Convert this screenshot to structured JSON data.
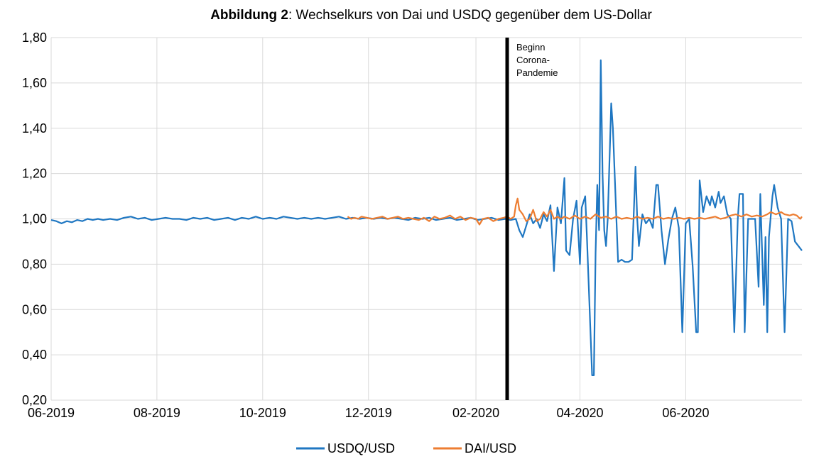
{
  "chart_data": {
    "type": "line",
    "title_bold": "Abbildung 2",
    "title_rest": ": Wechselkurs von Dai und USDQ gegenüber dem US-Dollar",
    "xlabel": "",
    "ylabel": "",
    "x_range": [
      "2019-06-01",
      "2020-08-07"
    ],
    "ylim": [
      0.2,
      1.8
    ],
    "y_ticks": [
      {
        "value": 0.2,
        "label": "0,20"
      },
      {
        "value": 0.4,
        "label": "0,40"
      },
      {
        "value": 0.6,
        "label": "0,60"
      },
      {
        "value": 0.8,
        "label": "0,80"
      },
      {
        "value": 1.0,
        "label": "1,00"
      },
      {
        "value": 1.2,
        "label": "1,20"
      },
      {
        "value": 1.4,
        "label": "1,40"
      },
      {
        "value": 1.6,
        "label": "1,60"
      },
      {
        "value": 1.8,
        "label": "1,80"
      }
    ],
    "x_ticks": [
      {
        "date": "2019-06-01",
        "label": "06-2019"
      },
      {
        "date": "2019-08-01",
        "label": "08-2019"
      },
      {
        "date": "2019-10-01",
        "label": "10-2019"
      },
      {
        "date": "2019-12-01",
        "label": "12-2019"
      },
      {
        "date": "2020-02-01",
        "label": "02-2020"
      },
      {
        "date": "2020-04-01",
        "label": "04-2020"
      },
      {
        "date": "2020-06-01",
        "label": "06-2020"
      }
    ],
    "grid": true,
    "legend_position": "bottom",
    "annotation": {
      "date": "2020-02-19",
      "lines": [
        "Beginn",
        "Corona-",
        "Pandemie"
      ]
    },
    "series": [
      {
        "name": "USDQ/USD",
        "color": "#1f77c2",
        "points": [
          [
            "2019-06-01",
            0.995
          ],
          [
            "2019-06-04",
            0.99
          ],
          [
            "2019-06-07",
            0.98
          ],
          [
            "2019-06-10",
            0.99
          ],
          [
            "2019-06-13",
            0.985
          ],
          [
            "2019-06-16",
            0.995
          ],
          [
            "2019-06-19",
            0.99
          ],
          [
            "2019-06-22",
            1.0
          ],
          [
            "2019-06-25",
            0.995
          ],
          [
            "2019-06-28",
            1.0
          ],
          [
            "2019-07-01",
            0.995
          ],
          [
            "2019-07-05",
            1.0
          ],
          [
            "2019-07-09",
            0.995
          ],
          [
            "2019-07-13",
            1.005
          ],
          [
            "2019-07-17",
            1.01
          ],
          [
            "2019-07-21",
            1.0
          ],
          [
            "2019-07-25",
            1.005
          ],
          [
            "2019-07-29",
            0.995
          ],
          [
            "2019-08-02",
            1.0
          ],
          [
            "2019-08-06",
            1.005
          ],
          [
            "2019-08-10",
            1.0
          ],
          [
            "2019-08-14",
            1.0
          ],
          [
            "2019-08-18",
            0.995
          ],
          [
            "2019-08-22",
            1.005
          ],
          [
            "2019-08-26",
            1.0
          ],
          [
            "2019-08-30",
            1.005
          ],
          [
            "2019-09-03",
            0.995
          ],
          [
            "2019-09-07",
            1.0
          ],
          [
            "2019-09-11",
            1.005
          ],
          [
            "2019-09-15",
            0.995
          ],
          [
            "2019-09-19",
            1.005
          ],
          [
            "2019-09-23",
            1.0
          ],
          [
            "2019-09-27",
            1.01
          ],
          [
            "2019-10-01",
            1.0
          ],
          [
            "2019-10-05",
            1.005
          ],
          [
            "2019-10-09",
            1.0
          ],
          [
            "2019-10-13",
            1.01
          ],
          [
            "2019-10-17",
            1.005
          ],
          [
            "2019-10-21",
            1.0
          ],
          [
            "2019-10-25",
            1.005
          ],
          [
            "2019-10-29",
            1.0
          ],
          [
            "2019-11-02",
            1.005
          ],
          [
            "2019-11-06",
            1.0
          ],
          [
            "2019-11-10",
            1.005
          ],
          [
            "2019-11-14",
            1.01
          ],
          [
            "2019-11-18",
            1.0
          ],
          [
            "2019-11-22",
            1.005
          ],
          [
            "2019-11-26",
            1.0
          ],
          [
            "2019-11-30",
            1.005
          ],
          [
            "2019-12-04",
            1.0
          ],
          [
            "2019-12-08",
            1.005
          ],
          [
            "2019-12-12",
            1.0
          ],
          [
            "2019-12-16",
            1.005
          ],
          [
            "2019-12-20",
            1.0
          ],
          [
            "2019-12-24",
            0.995
          ],
          [
            "2019-12-28",
            1.005
          ],
          [
            "2020-01-01",
            1.0
          ],
          [
            "2020-01-05",
            1.005
          ],
          [
            "2020-01-09",
            0.995
          ],
          [
            "2020-01-13",
            1.0
          ],
          [
            "2020-01-17",
            1.005
          ],
          [
            "2020-01-21",
            0.995
          ],
          [
            "2020-01-25",
            1.0
          ],
          [
            "2020-01-29",
            1.005
          ],
          [
            "2020-02-02",
            0.995
          ],
          [
            "2020-02-06",
            1.0
          ],
          [
            "2020-02-10",
            1.005
          ],
          [
            "2020-02-14",
            0.995
          ],
          [
            "2020-02-18",
            1.0
          ],
          [
            "2020-02-21",
            0.995
          ],
          [
            "2020-02-24",
            1.0
          ],
          [
            "2020-02-26",
            0.95
          ],
          [
            "2020-02-28",
            0.92
          ],
          [
            "2020-03-01",
            0.97
          ],
          [
            "2020-03-03",
            1.02
          ],
          [
            "2020-03-05",
            0.98
          ],
          [
            "2020-03-07",
            1.0
          ],
          [
            "2020-03-09",
            0.96
          ],
          [
            "2020-03-11",
            1.02
          ],
          [
            "2020-03-13",
            0.99
          ],
          [
            "2020-03-15",
            1.06
          ],
          [
            "2020-03-17",
            0.77
          ],
          [
            "2020-03-19",
            1.05
          ],
          [
            "2020-03-21",
            0.98
          ],
          [
            "2020-03-23",
            1.18
          ],
          [
            "2020-03-24",
            0.86
          ],
          [
            "2020-03-26",
            0.84
          ],
          [
            "2020-03-28",
            1.0
          ],
          [
            "2020-03-30",
            1.08
          ],
          [
            "2020-04-01",
            0.8
          ],
          [
            "2020-04-02",
            1.05
          ],
          [
            "2020-04-04",
            1.1
          ],
          [
            "2020-04-05",
            0.92
          ],
          [
            "2020-04-08",
            0.31
          ],
          [
            "2020-04-09",
            0.31
          ],
          [
            "2020-04-10",
            0.85
          ],
          [
            "2020-04-11",
            1.15
          ],
          [
            "2020-04-12",
            0.95
          ],
          [
            "2020-04-13",
            1.7
          ],
          [
            "2020-04-14",
            1.2
          ],
          [
            "2020-04-15",
            0.95
          ],
          [
            "2020-04-16",
            0.88
          ],
          [
            "2020-04-17",
            1.0
          ],
          [
            "2020-04-18",
            1.25
          ],
          [
            "2020-04-19",
            1.51
          ],
          [
            "2020-04-20",
            1.4
          ],
          [
            "2020-04-22",
            1.0
          ],
          [
            "2020-04-23",
            0.81
          ],
          [
            "2020-04-25",
            0.82
          ],
          [
            "2020-04-27",
            0.81
          ],
          [
            "2020-04-29",
            0.81
          ],
          [
            "2020-05-01",
            0.82
          ],
          [
            "2020-05-03",
            1.23
          ],
          [
            "2020-05-04",
            1.0
          ],
          [
            "2020-05-05",
            0.88
          ],
          [
            "2020-05-07",
            1.02
          ],
          [
            "2020-05-09",
            0.98
          ],
          [
            "2020-05-11",
            1.0
          ],
          [
            "2020-05-13",
            0.96
          ],
          [
            "2020-05-15",
            1.15
          ],
          [
            "2020-05-16",
            1.15
          ],
          [
            "2020-05-18",
            0.95
          ],
          [
            "2020-05-20",
            0.8
          ],
          [
            "2020-05-22",
            0.91
          ],
          [
            "2020-05-24",
            1.0
          ],
          [
            "2020-05-26",
            1.05
          ],
          [
            "2020-05-28",
            0.96
          ],
          [
            "2020-05-30",
            0.5
          ],
          [
            "2020-06-01",
            0.98
          ],
          [
            "2020-06-03",
            1.0
          ],
          [
            "2020-06-05",
            0.79
          ],
          [
            "2020-06-07",
            0.5
          ],
          [
            "2020-06-08",
            0.5
          ],
          [
            "2020-06-09",
            1.17
          ],
          [
            "2020-06-11",
            1.03
          ],
          [
            "2020-06-13",
            1.1
          ],
          [
            "2020-06-15",
            1.06
          ],
          [
            "2020-06-16",
            1.1
          ],
          [
            "2020-06-18",
            1.05
          ],
          [
            "2020-06-20",
            1.12
          ],
          [
            "2020-06-21",
            1.07
          ],
          [
            "2020-06-23",
            1.1
          ],
          [
            "2020-06-25",
            1.02
          ],
          [
            "2020-06-27",
            1.0
          ],
          [
            "2020-06-29",
            0.5
          ],
          [
            "2020-07-01",
            1.0
          ],
          [
            "2020-07-02",
            1.11
          ],
          [
            "2020-07-04",
            1.11
          ],
          [
            "2020-07-05",
            0.5
          ],
          [
            "2020-07-07",
            1.0
          ],
          [
            "2020-07-11",
            1.0
          ],
          [
            "2020-07-13",
            0.7
          ],
          [
            "2020-07-14",
            1.11
          ],
          [
            "2020-07-16",
            0.62
          ],
          [
            "2020-07-17",
            0.92
          ],
          [
            "2020-07-18",
            0.5
          ],
          [
            "2020-07-19",
            0.92
          ],
          [
            "2020-07-21",
            1.1
          ],
          [
            "2020-07-22",
            1.15
          ],
          [
            "2020-07-24",
            1.05
          ],
          [
            "2020-07-26",
            1.0
          ],
          [
            "2020-07-28",
            0.5
          ],
          [
            "2020-07-30",
            1.0
          ],
          [
            "2020-08-01",
            0.99
          ],
          [
            "2020-08-03",
            0.9
          ],
          [
            "2020-08-05",
            0.88
          ],
          [
            "2020-08-07",
            0.86
          ]
        ]
      },
      {
        "name": "DAI/USD",
        "color": "#ed7d31",
        "points": [
          [
            "2019-11-19",
            1.01
          ],
          [
            "2019-11-21",
            1.0
          ],
          [
            "2019-11-23",
            1.005
          ],
          [
            "2019-11-25",
            1.0
          ],
          [
            "2019-11-27",
            1.01
          ],
          [
            "2019-11-30",
            1.005
          ],
          [
            "2019-12-03",
            1.0
          ],
          [
            "2019-12-06",
            1.005
          ],
          [
            "2019-12-09",
            1.01
          ],
          [
            "2019-12-12",
            1.0
          ],
          [
            "2019-12-15",
            1.005
          ],
          [
            "2019-12-18",
            1.01
          ],
          [
            "2019-12-21",
            1.0
          ],
          [
            "2019-12-24",
            1.005
          ],
          [
            "2019-12-27",
            1.0
          ],
          [
            "2019-12-30",
            0.995
          ],
          [
            "2020-01-02",
            1.005
          ],
          [
            "2020-01-05",
            0.99
          ],
          [
            "2020-01-08",
            1.01
          ],
          [
            "2020-01-11",
            1.0
          ],
          [
            "2020-01-14",
            1.005
          ],
          [
            "2020-01-17",
            1.015
          ],
          [
            "2020-01-20",
            1.0
          ],
          [
            "2020-01-23",
            1.01
          ],
          [
            "2020-01-26",
            0.995
          ],
          [
            "2020-01-29",
            1.005
          ],
          [
            "2020-02-01",
            1.0
          ],
          [
            "2020-02-03",
            0.975
          ],
          [
            "2020-02-05",
            1.0
          ],
          [
            "2020-02-08",
            1.005
          ],
          [
            "2020-02-11",
            0.99
          ],
          [
            "2020-02-14",
            1.0
          ],
          [
            "2020-02-17",
            1.005
          ],
          [
            "2020-02-19",
            1.01
          ],
          [
            "2020-02-21",
            1.0
          ],
          [
            "2020-02-23",
            1.01
          ],
          [
            "2020-02-24",
            1.06
          ],
          [
            "2020-02-25",
            1.09
          ],
          [
            "2020-02-26",
            1.04
          ],
          [
            "2020-02-28",
            1.02
          ],
          [
            "2020-03-01",
            0.99
          ],
          [
            "2020-03-03",
            1.0
          ],
          [
            "2020-03-05",
            1.04
          ],
          [
            "2020-03-07",
            0.99
          ],
          [
            "2020-03-09",
            1.0
          ],
          [
            "2020-03-11",
            1.03
          ],
          [
            "2020-03-13",
            1.01
          ],
          [
            "2020-03-15",
            1.04
          ],
          [
            "2020-03-17",
            1.0
          ],
          [
            "2020-03-19",
            1.01
          ],
          [
            "2020-03-21",
            1.0
          ],
          [
            "2020-03-23",
            1.01
          ],
          [
            "2020-03-26",
            1.0
          ],
          [
            "2020-03-29",
            1.015
          ],
          [
            "2020-04-01",
            1.0
          ],
          [
            "2020-04-04",
            1.01
          ],
          [
            "2020-04-07",
            1.0
          ],
          [
            "2020-04-10",
            1.02
          ],
          [
            "2020-04-13",
            1.005
          ],
          [
            "2020-04-16",
            1.01
          ],
          [
            "2020-04-19",
            1.0
          ],
          [
            "2020-04-22",
            1.01
          ],
          [
            "2020-04-25",
            1.0
          ],
          [
            "2020-04-28",
            1.005
          ],
          [
            "2020-05-01",
            1.0
          ],
          [
            "2020-05-04",
            1.01
          ],
          [
            "2020-05-07",
            1.0
          ],
          [
            "2020-05-10",
            1.005
          ],
          [
            "2020-05-13",
            1.0
          ],
          [
            "2020-05-16",
            1.01
          ],
          [
            "2020-05-19",
            1.0
          ],
          [
            "2020-05-22",
            1.005
          ],
          [
            "2020-05-25",
            1.0
          ],
          [
            "2020-05-28",
            1.005
          ],
          [
            "2020-05-31",
            1.0
          ],
          [
            "2020-06-03",
            1.005
          ],
          [
            "2020-06-06",
            1.0
          ],
          [
            "2020-06-09",
            1.005
          ],
          [
            "2020-06-12",
            1.0
          ],
          [
            "2020-06-15",
            1.005
          ],
          [
            "2020-06-18",
            1.01
          ],
          [
            "2020-06-21",
            1.0
          ],
          [
            "2020-06-24",
            1.005
          ],
          [
            "2020-06-27",
            1.015
          ],
          [
            "2020-06-30",
            1.02
          ],
          [
            "2020-07-03",
            1.01
          ],
          [
            "2020-07-06",
            1.02
          ],
          [
            "2020-07-09",
            1.01
          ],
          [
            "2020-07-12",
            1.015
          ],
          [
            "2020-07-15",
            1.01
          ],
          [
            "2020-07-18",
            1.02
          ],
          [
            "2020-07-20",
            1.03
          ],
          [
            "2020-07-23",
            1.02
          ],
          [
            "2020-07-26",
            1.03
          ],
          [
            "2020-07-28",
            1.02
          ],
          [
            "2020-07-31",
            1.015
          ],
          [
            "2020-08-02",
            1.02
          ],
          [
            "2020-08-04",
            1.015
          ],
          [
            "2020-08-06",
            1.0
          ],
          [
            "2020-08-07",
            1.01
          ]
        ]
      }
    ]
  }
}
